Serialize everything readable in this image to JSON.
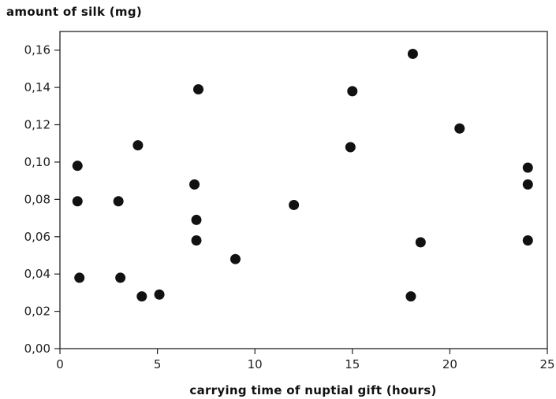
{
  "chart_data": {
    "type": "scatter",
    "title": "",
    "xlabel": "carrying time of nuptial gift (hours)",
    "ylabel": "amount of silk (mg)",
    "xlim": [
      0,
      25
    ],
    "ylim": [
      0,
      0.17
    ],
    "x_ticks": [
      0,
      5,
      10,
      15,
      20,
      25
    ],
    "x_tick_labels": [
      "0",
      "5",
      "10",
      "15",
      "20",
      "25"
    ],
    "y_ticks": [
      0,
      0.02,
      0.04,
      0.06,
      0.08,
      0.1,
      0.12,
      0.14,
      0.16
    ],
    "y_tick_labels": [
      "0,00",
      "0,02",
      "0,04",
      "0,06",
      "0,08",
      "0,10",
      "0,12",
      "0,14",
      "0,16"
    ],
    "grid": false,
    "legend": "none",
    "marker_color": "#111111",
    "series": [
      {
        "points": [
          {
            "x": 0.9,
            "y": 0.098
          },
          {
            "x": 0.9,
            "y": 0.079
          },
          {
            "x": 1.0,
            "y": 0.038
          },
          {
            "x": 3.0,
            "y": 0.079
          },
          {
            "x": 3.1,
            "y": 0.038
          },
          {
            "x": 4.0,
            "y": 0.109
          },
          {
            "x": 4.2,
            "y": 0.028
          },
          {
            "x": 5.1,
            "y": 0.029
          },
          {
            "x": 6.9,
            "y": 0.088
          },
          {
            "x": 7.0,
            "y": 0.069
          },
          {
            "x": 7.0,
            "y": 0.058
          },
          {
            "x": 7.1,
            "y": 0.139
          },
          {
            "x": 9.0,
            "y": 0.048
          },
          {
            "x": 12.0,
            "y": 0.077
          },
          {
            "x": 15.0,
            "y": 0.138
          },
          {
            "x": 14.9,
            "y": 0.108
          },
          {
            "x": 18.0,
            "y": 0.028
          },
          {
            "x": 18.1,
            "y": 0.158
          },
          {
            "x": 18.5,
            "y": 0.057
          },
          {
            "x": 20.5,
            "y": 0.118
          },
          {
            "x": 24.0,
            "y": 0.097
          },
          {
            "x": 24.0,
            "y": 0.088
          },
          {
            "x": 24.0,
            "y": 0.058
          }
        ]
      }
    ]
  }
}
